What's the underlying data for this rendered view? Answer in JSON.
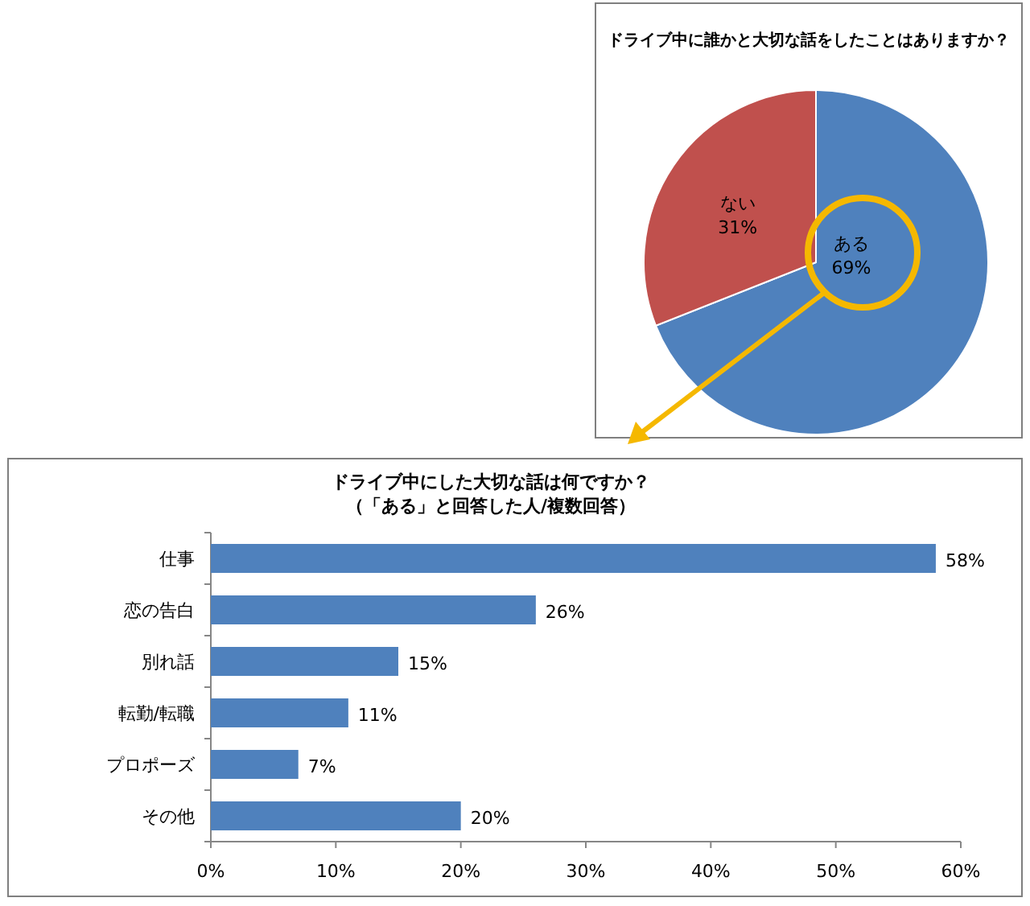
{
  "chart_data": [
    {
      "type": "pie",
      "title": "ドライブ中に誰かと大切な話をしたことはありますか？",
      "categories": [
        "ある",
        "ない"
      ],
      "values": [
        69,
        31
      ],
      "colors": [
        "#4f81bd",
        "#c0504d"
      ],
      "value_labels": [
        "69%",
        "31%"
      ],
      "legend": false
    },
    {
      "type": "bar",
      "orientation": "horizontal",
      "title": "ドライブ中にした大切な話は何ですか？",
      "subtitle": "（「ある」と回答した人/複数回答）",
      "categories": [
        "仕事",
        "恋の告白",
        "別れ話",
        "転勤/転職",
        "プロポーズ",
        "その他"
      ],
      "values": [
        58,
        26,
        15,
        11,
        7,
        20
      ],
      "color": "#4f81bd",
      "value_labels": [
        "58%",
        "26%",
        "15%",
        "11%",
        "7%",
        "20%"
      ],
      "xlim": [
        0,
        60
      ],
      "xticks": [
        {
          "value": 0,
          "label": "0%"
        },
        {
          "value": 10,
          "label": "10%"
        },
        {
          "value": 20,
          "label": "20%"
        },
        {
          "value": 30,
          "label": "30%"
        },
        {
          "value": 40,
          "label": "40%"
        },
        {
          "value": 50,
          "label": "50%"
        },
        {
          "value": 60,
          "label": "60%"
        }
      ],
      "grid": false
    }
  ]
}
